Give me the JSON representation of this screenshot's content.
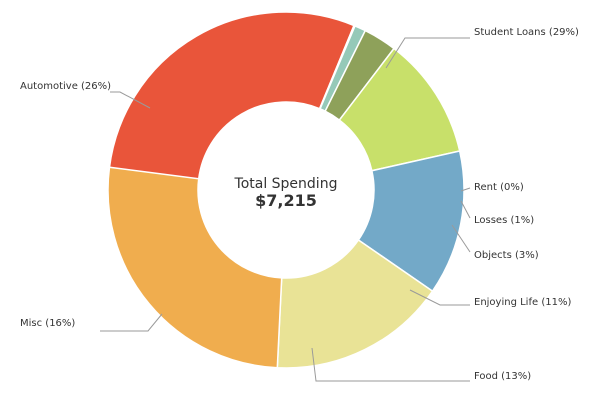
{
  "chart_data": {
    "type": "pie",
    "variant": "donut",
    "title": "Total Spending",
    "total_label": "$7,215",
    "slices": [
      {
        "name": "Student Loans",
        "percent": 29,
        "label": "Student Loans (29%)",
        "color": "#e9553a"
      },
      {
        "name": "Rent",
        "percent": 0,
        "label": "Rent  (0%)",
        "color": "#1a7fa6"
      },
      {
        "name": "Losses",
        "percent": 1,
        "label": "Losses (1%)",
        "color": "#95c9b8"
      },
      {
        "name": "Objects",
        "percent": 3,
        "label": "Objects (3%)",
        "color": "#8ea15a"
      },
      {
        "name": "Enjoying Life",
        "percent": 11,
        "label": "Enjoying Life (11%)",
        "color": "#c8e06a"
      },
      {
        "name": "Food",
        "percent": 13,
        "label": "Food (13%)",
        "color": "#73a9c8"
      },
      {
        "name": "Misc",
        "percent": 16,
        "label": "Misc (16%)",
        "color": "#e9e396"
      },
      {
        "name": "Automotive",
        "percent": 26,
        "label": "Automotive (26%)",
        "color": "#f0ad4e"
      }
    ]
  }
}
